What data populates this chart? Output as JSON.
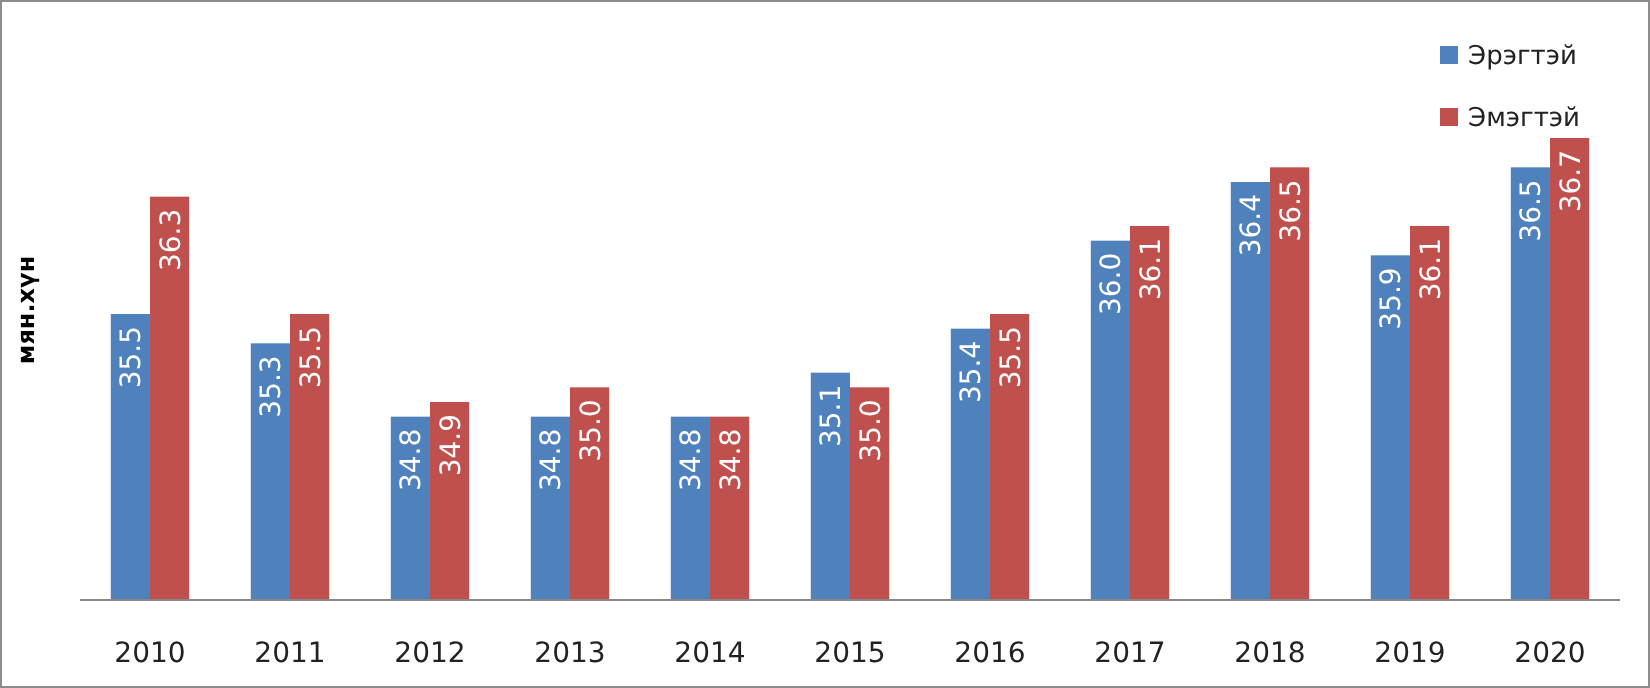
{
  "chart_data": {
    "type": "bar",
    "ylabel": "мян.хүн",
    "categories": [
      "2010",
      "2011",
      "2012",
      "2013",
      "2014",
      "2015",
      "2016",
      "2017",
      "2018",
      "2019",
      "2020"
    ],
    "series": [
      {
        "name": "Эрэгтэй",
        "color": "#4f81bd",
        "values": [
          35.5,
          35.3,
          34.8,
          34.8,
          34.8,
          35.1,
          35.4,
          36.0,
          36.4,
          35.9,
          36.5
        ],
        "value_labels": [
          "35.5",
          "35.3",
          "34.8",
          "34.8",
          "34.8",
          "35.1",
          "35.4",
          "36.0",
          "36.4",
          "35.9",
          "36.5"
        ]
      },
      {
        "name": "Эмэгтэй",
        "color": "#c0504d",
        "values": [
          36.3,
          35.5,
          34.9,
          35.0,
          34.8,
          35.0,
          35.5,
          36.1,
          36.5,
          36.1,
          36.7
        ],
        "value_labels": [
          "36.3",
          "35.5",
          "34.9",
          "35.0",
          "34.8",
          "35.0",
          "35.5",
          "36.1",
          "36.5",
          "36.1",
          "36.7"
        ]
      }
    ],
    "ylim": [
      33.55,
      36.7
    ],
    "tick_labels": "x",
    "legend": "top right"
  }
}
